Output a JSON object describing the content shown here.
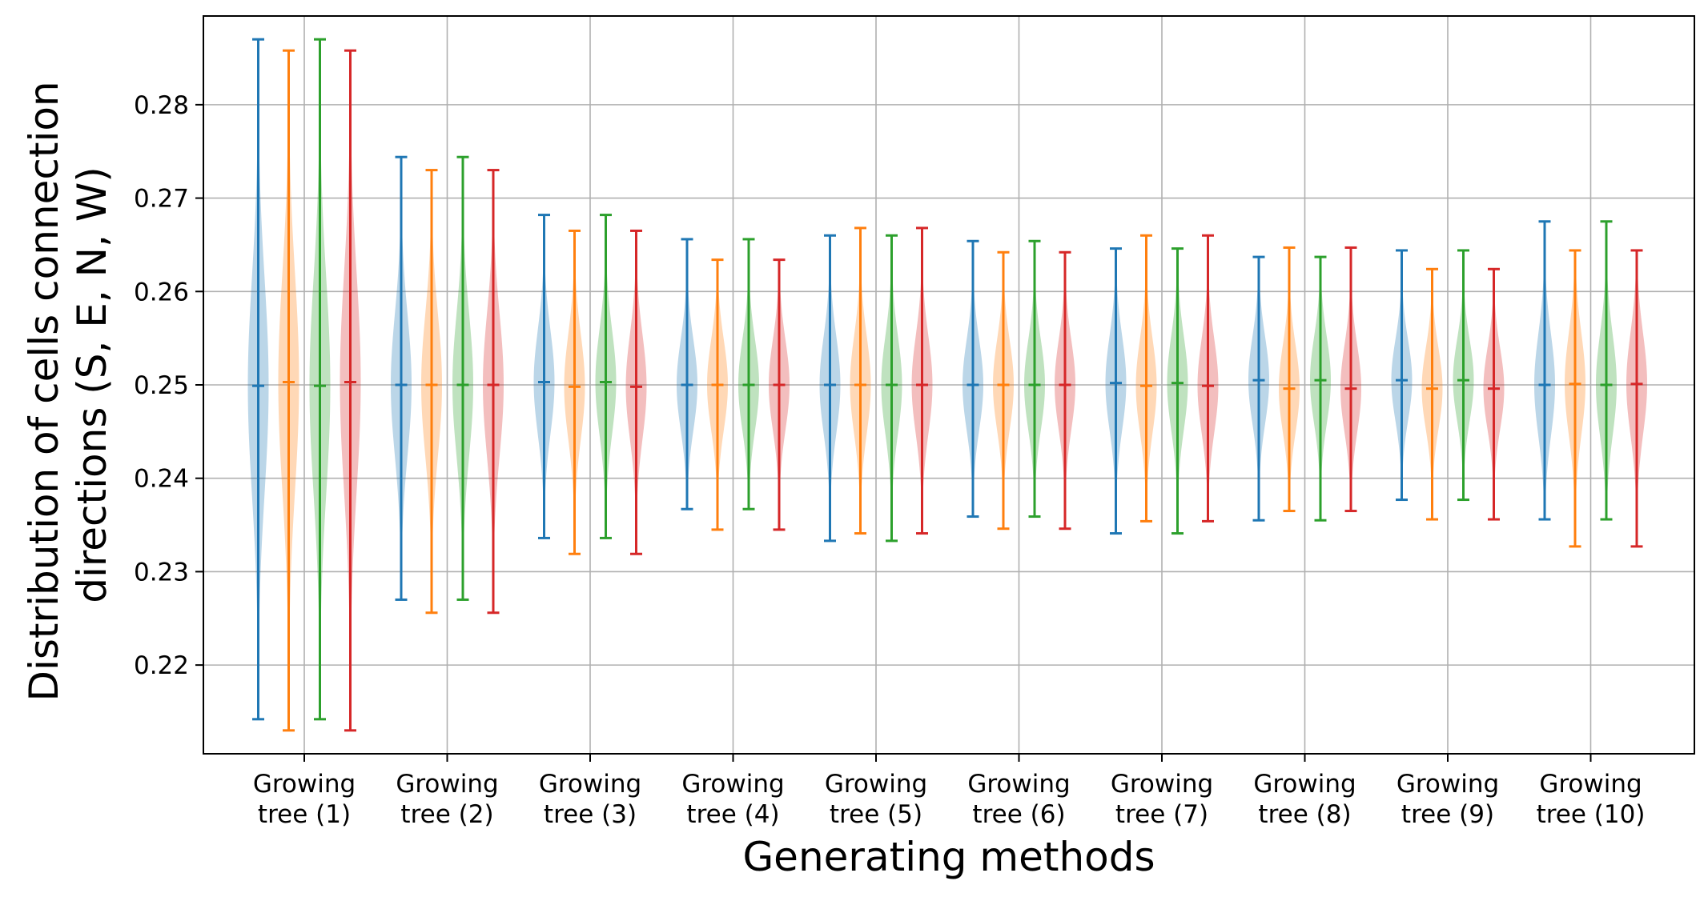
{
  "chart_data": {
    "type": "violin",
    "title": "",
    "xlabel": "Generating methods",
    "ylabel_lines": [
      "Distribution of cells connection",
      "directions (S, E, N, W)"
    ],
    "ylim": [
      0.2105,
      0.2895
    ],
    "yticks": [
      0.22,
      0.23,
      0.24,
      0.25,
      0.26,
      0.27,
      0.28
    ],
    "ytick_labels": [
      "0.22",
      "0.23",
      "0.24",
      "0.25",
      "0.26",
      "0.27",
      "0.28"
    ],
    "grid": true,
    "legend": "none",
    "categories": [
      [
        "Growing",
        "tree (1)"
      ],
      [
        "Growing",
        "tree (2)"
      ],
      [
        "Growing",
        "tree (3)"
      ],
      [
        "Growing",
        "tree (4)"
      ],
      [
        "Growing",
        "tree (5)"
      ],
      [
        "Growing",
        "tree (6)"
      ],
      [
        "Growing",
        "tree (7)"
      ],
      [
        "Growing",
        "tree (8)"
      ],
      [
        "Growing",
        "tree (9)"
      ],
      [
        "Growing",
        "tree (10)"
      ]
    ],
    "series": [
      {
        "color": "#1f77b4",
        "min": [
          0.2142,
          0.227,
          0.2336,
          0.2367,
          0.2333,
          0.2359,
          0.2341,
          0.2355,
          0.2377,
          0.2356
        ],
        "median": [
          0.2499,
          0.25,
          0.2503,
          0.25,
          0.25,
          0.25,
          0.2502,
          0.2505,
          0.2505,
          0.25
        ],
        "max": [
          0.287,
          0.2744,
          0.2682,
          0.2656,
          0.266,
          0.2654,
          0.2646,
          0.2637,
          0.2644,
          0.2675
        ]
      },
      {
        "color": "#ff7f0e",
        "min": [
          0.213,
          0.2256,
          0.2319,
          0.2345,
          0.2341,
          0.2346,
          0.2354,
          0.2365,
          0.2356,
          0.2327
        ],
        "median": [
          0.2503,
          0.25,
          0.2498,
          0.25,
          0.25,
          0.25,
          0.2499,
          0.2496,
          0.2496,
          0.2501
        ],
        "max": [
          0.2858,
          0.273,
          0.2665,
          0.2634,
          0.2668,
          0.2642,
          0.266,
          0.2647,
          0.2624,
          0.2644
        ]
      },
      {
        "color": "#2ca02c",
        "min": [
          0.2142,
          0.227,
          0.2336,
          0.2367,
          0.2333,
          0.2359,
          0.2341,
          0.2355,
          0.2377,
          0.2356
        ],
        "median": [
          0.2499,
          0.25,
          0.2503,
          0.25,
          0.25,
          0.25,
          0.2502,
          0.2505,
          0.2505,
          0.25
        ],
        "max": [
          0.287,
          0.2744,
          0.2682,
          0.2656,
          0.266,
          0.2654,
          0.2646,
          0.2637,
          0.2644,
          0.2675
        ]
      },
      {
        "color": "#d62728",
        "min": [
          0.213,
          0.2256,
          0.2319,
          0.2345,
          0.2341,
          0.2346,
          0.2354,
          0.2365,
          0.2356,
          0.2327
        ],
        "median": [
          0.2503,
          0.25,
          0.2498,
          0.25,
          0.25,
          0.25,
          0.2499,
          0.2496,
          0.2496,
          0.2501
        ],
        "max": [
          0.2858,
          0.273,
          0.2665,
          0.2634,
          0.2668,
          0.2642,
          0.266,
          0.2647,
          0.2624,
          0.2644
        ]
      }
    ]
  }
}
